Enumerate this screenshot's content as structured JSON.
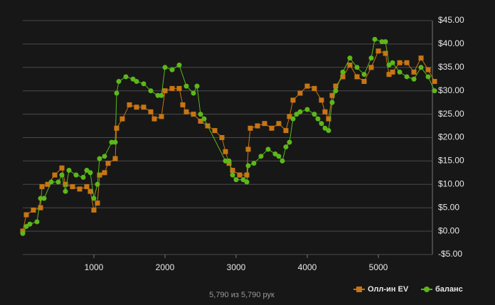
{
  "chart_data": {
    "type": "line",
    "footer": "5,790 из 5,790 рук",
    "xlim": [
      0,
      5790
    ],
    "xticks": [
      1000,
      2000,
      3000,
      4000,
      5000
    ],
    "ylim": [
      -5,
      45
    ],
    "yticks": [
      {
        "value": -5,
        "label": "-$5.00"
      },
      {
        "value": 0,
        "label": "$0.00"
      },
      {
        "value": 5,
        "label": "$5.00"
      },
      {
        "value": 10,
        "label": "$10.00"
      },
      {
        "value": 15,
        "label": "$15.00"
      },
      {
        "value": 20,
        "label": "$20.00"
      },
      {
        "value": 25,
        "label": "$25.00"
      },
      {
        "value": 30,
        "label": "$30.00"
      },
      {
        "value": 35,
        "label": "$35.00"
      },
      {
        "value": 40,
        "label": "$40.00"
      },
      {
        "value": 45,
        "label": "$45.00"
      }
    ],
    "grid": true,
    "series": [
      {
        "name": "Олл-ин EV",
        "color": "#c87514",
        "marker": "square",
        "x": [
          0,
          50,
          150,
          250,
          270,
          350,
          450,
          550,
          600,
          700,
          800,
          900,
          950,
          1000,
          1050,
          1080,
          1150,
          1200,
          1300,
          1320,
          1400,
          1500,
          1600,
          1700,
          1800,
          1850,
          1950,
          2000,
          2100,
          2200,
          2250,
          2300,
          2400,
          2500,
          2600,
          2700,
          2800,
          2850,
          2900,
          2950,
          3050,
          3150,
          3170,
          3200,
          3300,
          3400,
          3500,
          3600,
          3700,
          3750,
          3800,
          3900,
          4000,
          4100,
          4200,
          4250,
          4300,
          4350,
          4400,
          4500,
          4600,
          4700,
          4800,
          4900,
          5000,
          5100,
          5150,
          5200,
          5300,
          5400,
          5500,
          5600,
          5700,
          5790
        ],
        "values": [
          0,
          3.5,
          4.5,
          5,
          9.5,
          10,
          12,
          13.5,
          10,
          9.5,
          9,
          9.5,
          8.5,
          4.5,
          6,
          12,
          12.5,
          14.5,
          15.5,
          22,
          24,
          27,
          26.5,
          26.5,
          25.5,
          24,
          24.5,
          30,
          30.5,
          30.5,
          27,
          25.5,
          25,
          23.5,
          22.5,
          21.5,
          20,
          17,
          14.5,
          13,
          12,
          12,
          17.5,
          22,
          22.5,
          23,
          22,
          23,
          21.5,
          24.5,
          28,
          29.5,
          31,
          30.5,
          28,
          25.5,
          24,
          29,
          31,
          33,
          35.5,
          33,
          32,
          35,
          38.5,
          38,
          33.5,
          34,
          36,
          36,
          34,
          37,
          34.5,
          32
        ]
      },
      {
        "name": "баланс",
        "color": "#5cb81a",
        "marker": "circle",
        "x": [
          0,
          50,
          100,
          200,
          250,
          300,
          400,
          500,
          550,
          600,
          650,
          750,
          850,
          900,
          950,
          1000,
          1050,
          1080,
          1150,
          1250,
          1300,
          1320,
          1350,
          1450,
          1550,
          1600,
          1700,
          1800,
          1900,
          1950,
          2000,
          2100,
          2200,
          2300,
          2400,
          2450,
          2500,
          2550,
          2850,
          2900,
          2950,
          3000,
          3100,
          3150,
          3170,
          3250,
          3350,
          3450,
          3550,
          3600,
          3650,
          3700,
          3750,
          3800,
          3850,
          3900,
          4000,
          4100,
          4150,
          4200,
          4250,
          4300,
          4350,
          4400,
          4500,
          4600,
          4700,
          4800,
          4900,
          4950,
          5050,
          5100,
          5150,
          5200,
          5300,
          5400,
          5500,
          5600,
          5700,
          5790
        ],
        "values": [
          -0.5,
          1,
          1.5,
          2,
          7,
          7,
          10.5,
          10.5,
          12,
          8.5,
          13,
          12,
          11.5,
          13,
          12.5,
          7,
          10,
          15.5,
          16,
          19,
          19,
          29.5,
          32,
          33,
          32.5,
          32,
          31.5,
          30,
          29,
          29,
          35,
          34.5,
          35.5,
          31,
          29.5,
          31,
          25,
          24,
          15,
          15,
          12,
          11,
          11,
          10.5,
          14,
          14.5,
          16,
          17.5,
          16.5,
          16,
          15,
          18,
          19,
          24,
          25,
          25.5,
          26,
          25,
          24,
          23,
          22,
          21.5,
          27.5,
          30,
          34,
          37,
          35,
          33.5,
          37,
          41,
          40.5,
          40.5,
          35.5,
          36,
          34,
          33,
          32.5,
          35,
          33,
          30
        ]
      }
    ]
  }
}
